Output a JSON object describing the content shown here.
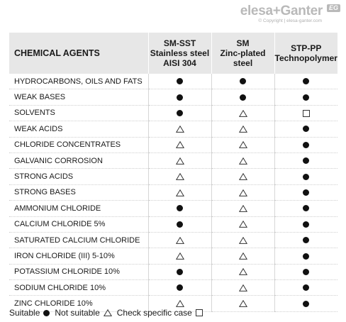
{
  "brand": {
    "logo_text": "elesa+Ganter",
    "badge": "EG",
    "copyright": "© Copyright | elesa-ganter.com"
  },
  "header": {
    "agent_label": "CHEMICAL AGENTS",
    "materials": [
      {
        "line1": "SM-SST",
        "line2": "Stainless steel",
        "line3": "AISI 304"
      },
      {
        "line1": "SM",
        "line2": "Zinc-plated",
        "line3": "steel"
      },
      {
        "line1": "STP-PP",
        "line2": "Technopolymer",
        "line3": ""
      }
    ]
  },
  "rows": [
    {
      "agent": "HYDROCARBONS, OILS AND FATS",
      "marks": [
        "suitable",
        "suitable",
        "suitable"
      ]
    },
    {
      "agent": "WEAK BASES",
      "marks": [
        "suitable",
        "suitable",
        "suitable"
      ]
    },
    {
      "agent": "SOLVENTS",
      "marks": [
        "suitable",
        "not_suitable",
        "check"
      ]
    },
    {
      "agent": "WEAK ACIDS",
      "marks": [
        "not_suitable",
        "not_suitable",
        "suitable"
      ]
    },
    {
      "agent": "CHLORIDE CONCENTRATES",
      "marks": [
        "not_suitable",
        "not_suitable",
        "suitable"
      ]
    },
    {
      "agent": "GALVANIC CORROSION",
      "marks": [
        "not_suitable",
        "not_suitable",
        "suitable"
      ]
    },
    {
      "agent": "STRONG ACIDS",
      "marks": [
        "not_suitable",
        "not_suitable",
        "suitable"
      ]
    },
    {
      "agent": "STRONG BASES",
      "marks": [
        "not_suitable",
        "not_suitable",
        "suitable"
      ]
    },
    {
      "agent": "AMMONIUM CHLORIDE",
      "marks": [
        "suitable",
        "not_suitable",
        "suitable"
      ]
    },
    {
      "agent": "CALCIUM CHLORIDE 5%",
      "marks": [
        "suitable",
        "not_suitable",
        "suitable"
      ]
    },
    {
      "agent": "SATURATED CALCIUM CHLORIDE",
      "marks": [
        "not_suitable",
        "not_suitable",
        "suitable"
      ]
    },
    {
      "agent": "IRON CHLORIDE (III) 5-10%",
      "marks": [
        "not_suitable",
        "not_suitable",
        "suitable"
      ]
    },
    {
      "agent": "POTASSIUM CHLORIDE 10%",
      "marks": [
        "suitable",
        "not_suitable",
        "suitable"
      ]
    },
    {
      "agent": "SODIUM CHLORIDE 10%",
      "marks": [
        "suitable",
        "not_suitable",
        "suitable"
      ]
    },
    {
      "agent": "ZINC CHLORIDE 10%",
      "marks": [
        "not_suitable",
        "not_suitable",
        "suitable"
      ]
    }
  ],
  "legend": {
    "suitable": "Suitable",
    "not_suitable": "Not suitable",
    "check": "Check specific case"
  },
  "colors": {
    "header_bg": "#e7e7e7",
    "logo_gray": "#b9b9b9",
    "symbol": "#111111"
  }
}
